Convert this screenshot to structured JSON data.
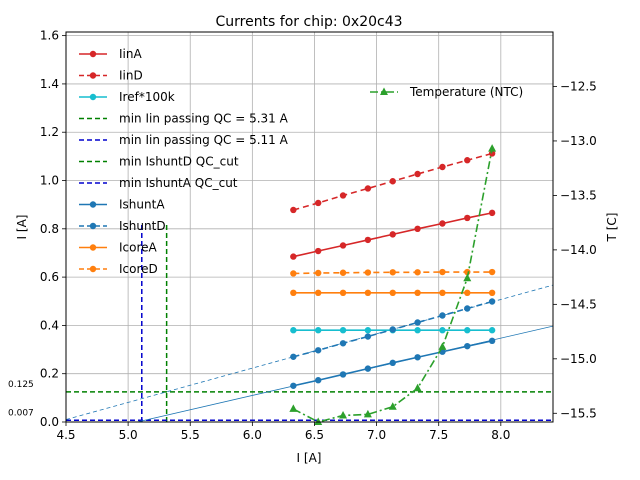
{
  "chart_data": {
    "type": "line",
    "title": "Currents for chip: 0x20c43",
    "xlabel": "I [A]",
    "ylabel": "I [A]",
    "y2label": "T [C]",
    "xlim": [
      4.5,
      8.42
    ],
    "ylim": [
      0,
      1.615
    ],
    "y2lim": [
      -15.58,
      -12.0
    ],
    "xticks": [
      "4.5",
      "5.0",
      "5.5",
      "6.0",
      "6.5",
      "7.0",
      "7.5",
      "8.0"
    ],
    "yticks": [
      "0.0",
      "0.2",
      "0.4",
      "0.6",
      "0.8",
      "1.0",
      "1.2",
      "1.4",
      "1.6"
    ],
    "y2ticks": [
      "−12.5",
      "−13.0",
      "−13.5",
      "−14.0",
      "−14.5",
      "−15.0",
      "−15.5"
    ],
    "grid": true,
    "x": [
      6.33,
      6.53,
      6.73,
      6.93,
      7.13,
      7.33,
      7.53,
      7.73,
      7.93
    ],
    "series": [
      {
        "name": "IinA",
        "color": "#d62728",
        "dash": "solid",
        "values": [
          0.685,
          0.708,
          0.731,
          0.754,
          0.777,
          0.8,
          0.822,
          0.845,
          0.866
        ]
      },
      {
        "name": "IinD",
        "color": "#d62728",
        "dash": "dashed",
        "values": [
          0.878,
          0.907,
          0.938,
          0.967,
          0.997,
          1.027,
          1.056,
          1.084,
          1.112
        ]
      },
      {
        "name": "Iref*100k",
        "color": "#17becf",
        "dash": "solid",
        "values": [
          0.38,
          0.38,
          0.38,
          0.38,
          0.38,
          0.38,
          0.38,
          0.38,
          0.38
        ]
      },
      {
        "name": "IshuntA",
        "color": "#1f77b4",
        "dash": "solid",
        "values": [
          0.15,
          0.173,
          0.197,
          0.221,
          0.245,
          0.268,
          0.291,
          0.314,
          0.336
        ]
      },
      {
        "name": "IshuntD",
        "color": "#1f77b4",
        "dash": "dashed",
        "values": [
          0.27,
          0.297,
          0.326,
          0.354,
          0.383,
          0.412,
          0.441,
          0.47,
          0.499
        ]
      },
      {
        "name": "IcoreA",
        "color": "#ff7f0e",
        "dash": "solid",
        "values": [
          0.535,
          0.535,
          0.535,
          0.535,
          0.535,
          0.535,
          0.535,
          0.535,
          0.535
        ]
      },
      {
        "name": "IcoreD",
        "color": "#ff7f0e",
        "dash": "dashed",
        "values": [
          0.615,
          0.617,
          0.618,
          0.619,
          0.62,
          0.62,
          0.621,
          0.621,
          0.621
        ]
      }
    ],
    "temperature": {
      "name": "Temperature (NTC)",
      "color": "#2ca02c",
      "axis": "right",
      "values": [
        -15.46,
        -15.58,
        -15.52,
        -15.51,
        -15.44,
        -15.27,
        -14.89,
        -14.26,
        -13.07
      ]
    },
    "threshold_lines": [
      {
        "name": "min Iin passing QC = 5.31 A",
        "color": "#008000",
        "orientation": "vertical",
        "x": 5.31,
        "y_range": [
          0,
          0.82
        ]
      },
      {
        "name": "min Iin passing QC = 5.11 A",
        "color": "#0000cd",
        "orientation": "vertical",
        "x": 5.11,
        "y_range": [
          0,
          0.82
        ]
      },
      {
        "name": "min IshuntD QC_cut",
        "color": "#008000",
        "orientation": "horizontal",
        "y": 0.125,
        "label": "0.125"
      },
      {
        "name": "min IshuntA QC_cut",
        "color": "#0000cd",
        "orientation": "horizontal",
        "y": 0.007,
        "label": "0.007"
      }
    ],
    "fit_lines": [
      {
        "series": "IshuntA",
        "color": "#1f77b4",
        "dash": "solid",
        "x": [
          4.5,
          8.42
        ],
        "y": [
          -0.068,
          0.397
        ]
      },
      {
        "series": "IshuntD",
        "color": "#1f77b4",
        "dash": "dashed",
        "x": [
          4.5,
          8.42
        ],
        "y": [
          0.01,
          0.567
        ]
      }
    ],
    "legend_left": [
      "IinA",
      "IinD",
      "Iref*100k",
      "min Iin passing QC = 5.31 A",
      "min Iin passing QC = 5.11 A",
      "min IshuntD QC_cut",
      "min IshuntA QC_cut",
      "IshuntA",
      "IshuntD",
      "IcoreA",
      "IcoreD"
    ],
    "legend_left_position": "top-left",
    "legend_right_position": "top-right"
  }
}
